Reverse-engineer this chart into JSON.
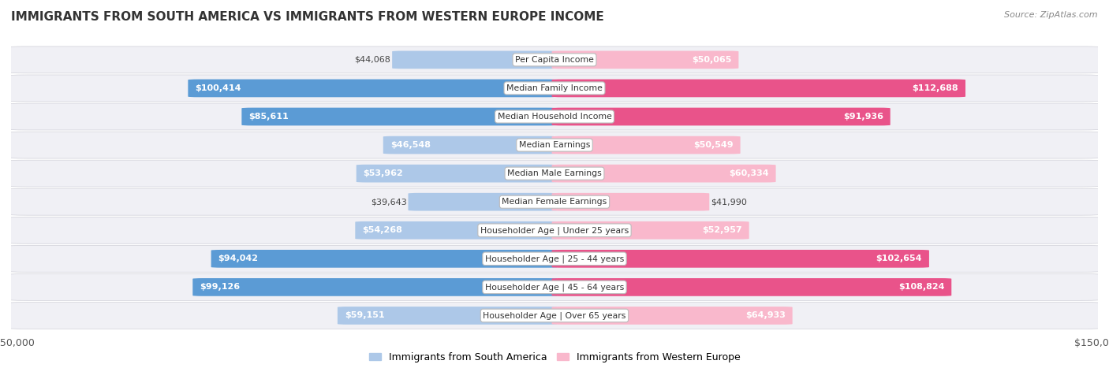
{
  "title": "IMMIGRANTS FROM SOUTH AMERICA VS IMMIGRANTS FROM WESTERN EUROPE INCOME",
  "source": "Source: ZipAtlas.com",
  "categories": [
    "Per Capita Income",
    "Median Family Income",
    "Median Household Income",
    "Median Earnings",
    "Median Male Earnings",
    "Median Female Earnings",
    "Householder Age | Under 25 years",
    "Householder Age | 25 - 44 years",
    "Householder Age | 45 - 64 years",
    "Householder Age | Over 65 years"
  ],
  "south_america": [
    44068,
    100414,
    85611,
    46548,
    53962,
    39643,
    54268,
    94042,
    99126,
    59151
  ],
  "western_europe": [
    50065,
    112688,
    91936,
    50549,
    60334,
    41990,
    52957,
    102654,
    108824,
    64933
  ],
  "south_america_color_light": "#adc8e8",
  "south_america_color_dark": "#5b9bd5",
  "western_europe_color_light": "#f9b8cc",
  "western_europe_color_dark": "#e9538a",
  "max_value": 150000,
  "sa_dark_threshold": 70000,
  "we_dark_threshold": 70000,
  "legend_sa": "Immigrants from South America",
  "legend_we": "Immigrants from Western Europe",
  "background_row_color": "#f0f0f5",
  "background_gap_color": "#ffffff",
  "bar_height": 0.62,
  "label_inside_threshold": 0.3
}
